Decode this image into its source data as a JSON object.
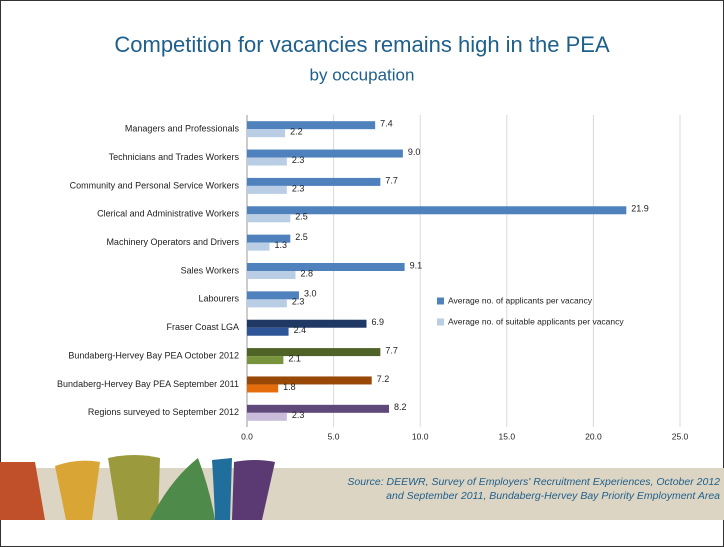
{
  "chart_data": {
    "type": "bar",
    "orientation": "horizontal",
    "title": "Competition for vacancies remains high in the PEA",
    "subtitle": "by occupation",
    "categories": [
      "Managers and Professionals",
      "Technicians and Trades Workers",
      "Community and Personal Service Workers",
      "Clerical and Administrative Workers",
      "Machinery Operators and Drivers",
      "Sales Workers",
      "Labourers",
      "Fraser Coast LGA",
      "Bundaberg-Hervey Bay PEA October 2012",
      "Bundaberg-Hervey Bay PEA September 2011",
      "Regions surveyed to September 2012"
    ],
    "series": [
      {
        "name": "Average no. of applicants per vacancy",
        "color": "#4f81bd",
        "colors": [
          "#4f81bd",
          "#4f81bd",
          "#4f81bd",
          "#4f81bd",
          "#4f81bd",
          "#4f81bd",
          "#4f81bd",
          "#1f3864",
          "#4f6228",
          "#984807",
          "#5f497a"
        ],
        "values": [
          7.4,
          9.0,
          7.7,
          21.9,
          2.5,
          9.1,
          3.0,
          6.9,
          7.7,
          7.2,
          8.2
        ],
        "value_labels": [
          "7.4",
          "9.0",
          "7.7",
          "21.9",
          "2.5",
          "9.1",
          "3.0",
          "6.9",
          "7.7",
          "7.2",
          "8.2"
        ]
      },
      {
        "name": "Average no. of suitable applicants per vacancy",
        "color": "#b9cde5",
        "colors": [
          "#b9cde5",
          "#b9cde5",
          "#b9cde5",
          "#b9cde5",
          "#b9cde5",
          "#b9cde5",
          "#b9cde5",
          "#2e5597",
          "#77933c",
          "#e46c0a",
          "#c9bcdb"
        ],
        "values": [
          2.2,
          2.3,
          2.3,
          2.5,
          1.3,
          2.8,
          2.3,
          2.4,
          2.1,
          1.8,
          2.3
        ],
        "value_labels": [
          "2.2",
          "2.3",
          "2.3",
          "2.5",
          "1.3",
          "2.8",
          "2.3",
          "2.4",
          "2.1",
          "1.8",
          "2.3"
        ]
      }
    ],
    "xlim": [
      0,
      25
    ],
    "xticks": [
      {
        "value": 0,
        "label": "0.0"
      },
      {
        "value": 5,
        "label": "5.0"
      },
      {
        "value": 10,
        "label": "10.0"
      },
      {
        "value": 15,
        "label": "15.0"
      },
      {
        "value": 20,
        "label": "20.0"
      },
      {
        "value": 25,
        "label": "25.0"
      }
    ],
    "grid": true,
    "legend": "right",
    "source": [
      "Source: DEEWR, Survey of Employers' Recruitment Experiences, October 2012",
      "and September 2011, Bundaberg-Hervey Bay Priority Employment Area"
    ]
  }
}
